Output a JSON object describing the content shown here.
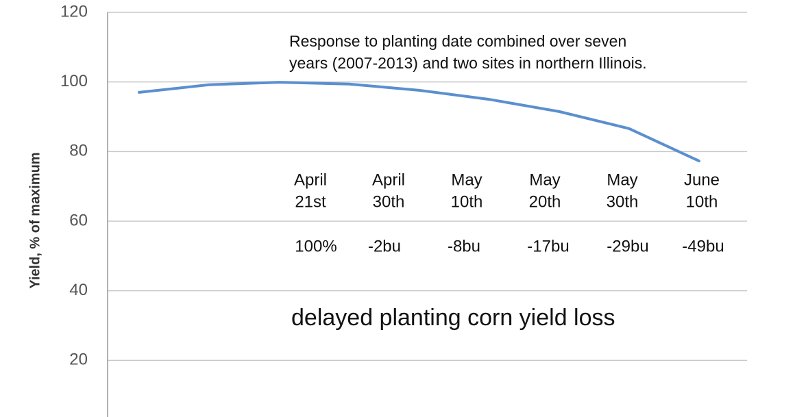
{
  "chart_data": {
    "type": "line",
    "y_label": "Yield, % of maximum",
    "categories": [
      null,
      null,
      null,
      null,
      null,
      null,
      null,
      null,
      null
    ],
    "series": [
      {
        "name": null,
        "color": "#5b8fcf",
        "values": [
          97.0,
          99.2,
          99.9,
          99.4,
          97.6,
          95.0,
          91.5,
          86.6,
          77.3
        ]
      }
    ],
    "ylim": [
      0,
      120
    ],
    "yticks": [
      20,
      40,
      60,
      80,
      100,
      120
    ],
    "grid": true,
    "annotations": {
      "note": [
        "Response to planting date combined over seven",
        "years (2007-2013) and two sites in northern Illinois."
      ],
      "dates": [
        [
          "April",
          "21st"
        ],
        [
          "April",
          "30th"
        ],
        [
          "May",
          "10th"
        ],
        [
          "May",
          "20th"
        ],
        [
          "May",
          "30th"
        ],
        [
          "June",
          "10th"
        ]
      ],
      "losses": [
        "100%",
        "-2bu",
        "-8bu",
        "-17bu",
        "-29bu",
        "-49bu"
      ],
      "caption": "delayed planting corn yield loss"
    }
  }
}
